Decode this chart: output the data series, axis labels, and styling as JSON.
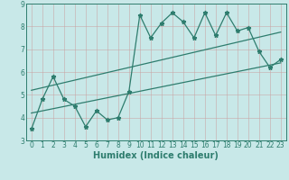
{
  "x": [
    0,
    1,
    2,
    3,
    4,
    5,
    6,
    7,
    8,
    9,
    10,
    11,
    12,
    13,
    14,
    15,
    16,
    17,
    18,
    19,
    20,
    21,
    22,
    23
  ],
  "y_jagged": [
    3.5,
    4.8,
    5.8,
    4.8,
    4.5,
    3.6,
    4.3,
    3.9,
    4.0,
    5.15,
    8.5,
    7.5,
    8.15,
    8.6,
    8.2,
    7.5,
    8.6,
    7.6,
    8.6,
    7.8,
    7.95,
    6.9,
    6.2,
    6.55
  ],
  "trend1_x": [
    0,
    23
  ],
  "trend1_y": [
    4.2,
    6.4
  ],
  "trend2_x": [
    0,
    23
  ],
  "trend2_y": [
    5.2,
    7.75
  ],
  "line_color": "#2e7d6e",
  "bg_color": "#c8e8e8",
  "grid_color": "#b0d0d0",
  "xlabel": "Humidex (Indice chaleur)",
  "ylim": [
    3.0,
    9.0
  ],
  "xlim": [
    -0.5,
    23.5
  ],
  "yticks": [
    3,
    4,
    5,
    6,
    7,
    8,
    9
  ],
  "xticks": [
    0,
    1,
    2,
    3,
    4,
    5,
    6,
    7,
    8,
    9,
    10,
    11,
    12,
    13,
    14,
    15,
    16,
    17,
    18,
    19,
    20,
    21,
    22,
    23
  ],
  "marker": "*",
  "markersize": 3.5,
  "linewidth": 0.9,
  "xlabel_fontsize": 7,
  "tick_fontsize": 5.5
}
